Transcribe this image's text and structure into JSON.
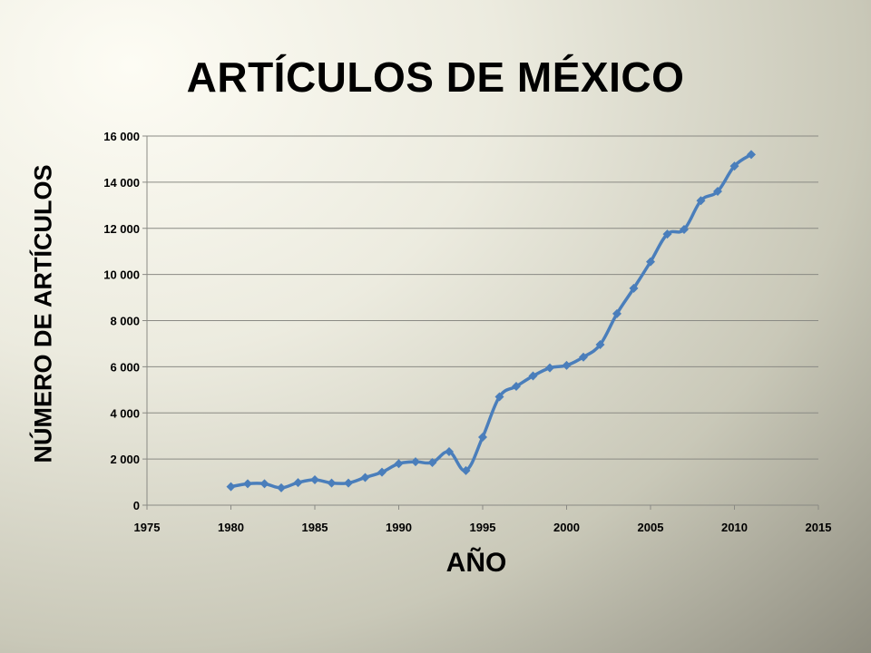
{
  "chart_data": {
    "type": "line",
    "title": "ARTÍCULOS DE MÉXICO",
    "xlabel": "AÑO",
    "ylabel": "NÚMERO DE ARTÍCULOS",
    "xlim": [
      1975,
      2015
    ],
    "ylim": [
      0,
      16000
    ],
    "xticks": [
      1975,
      1980,
      1985,
      1990,
      1995,
      2000,
      2005,
      2010,
      2015
    ],
    "xtick_labels": [
      "1975",
      "1980",
      "1985",
      "1990",
      "1995",
      "2000",
      "2005",
      "2010",
      "2015"
    ],
    "yticks": [
      0,
      2000,
      4000,
      6000,
      8000,
      10000,
      12000,
      14000,
      16000
    ],
    "ytick_labels": [
      "0",
      "2 000",
      "4 000",
      "6 000",
      "8 000",
      "10 000",
      "12 000",
      "14 000",
      "16 000"
    ],
    "grid": true,
    "legend": "none",
    "series": [
      {
        "color": "#4a7ebb",
        "x": [
          1980,
          1981,
          1982,
          1983,
          1984,
          1985,
          1986,
          1987,
          1988,
          1989,
          1990,
          1991,
          1992,
          1993,
          1994,
          1995,
          1996,
          1997,
          1998,
          1999,
          2000,
          2001,
          2002,
          2003,
          2004,
          2005,
          2006,
          2007,
          2008,
          2009,
          2010,
          2011
        ],
        "y": [
          800,
          930,
          930,
          750,
          980,
          1100,
          960,
          960,
          1200,
          1430,
          1800,
          1880,
          1850,
          2320,
          1500,
          2950,
          4700,
          5150,
          5600,
          5950,
          6060,
          6420,
          6960,
          8300,
          9400,
          10550,
          11750,
          11950,
          13200,
          13600,
          14700,
          15200
        ]
      }
    ]
  }
}
